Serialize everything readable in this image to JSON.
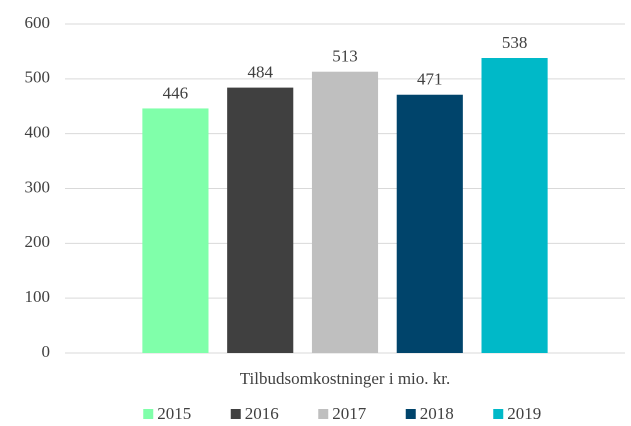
{
  "chart_data": {
    "type": "bar",
    "categories": [
      "Tilbudsomkostninger i mio. kr."
    ],
    "series": [
      {
        "name": "2015",
        "color": "#80ffaa",
        "values": [
          446
        ]
      },
      {
        "name": "2016",
        "color": "#404040",
        "values": [
          484
        ]
      },
      {
        "name": "2017",
        "color": "#bfbfbf",
        "values": [
          513
        ]
      },
      {
        "name": "2018",
        "color": "#00446b",
        "values": [
          471
        ]
      },
      {
        "name": "2019",
        "color": "#00b9c8",
        "values": [
          538
        ]
      }
    ],
    "ylim": [
      0,
      600
    ],
    "yticks": [
      0,
      100,
      200,
      300,
      400,
      500,
      600
    ],
    "grid": true,
    "legend": "bottom"
  }
}
